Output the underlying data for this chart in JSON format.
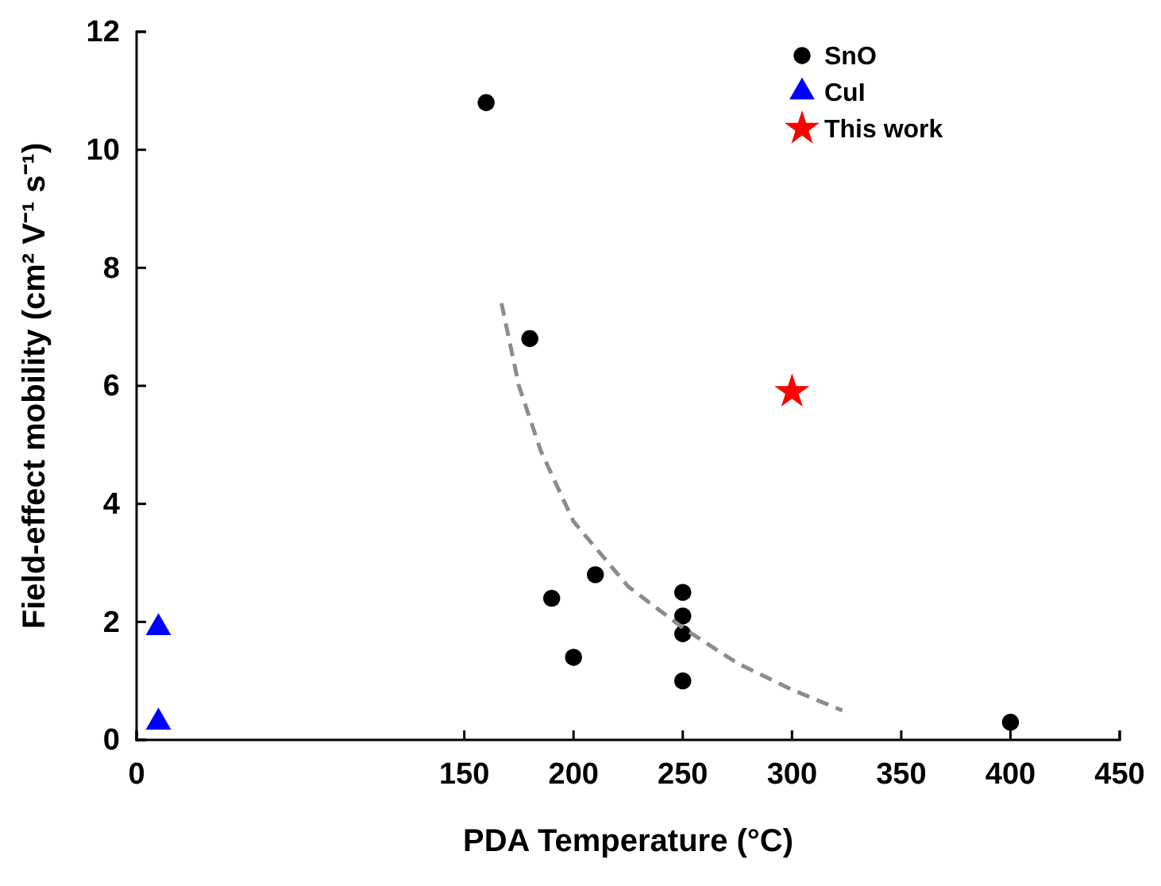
{
  "chart_data": {
    "type": "scatter",
    "xlabel": "PDA Temperature (°C)",
    "ylabel": "Field-effect mobility (cm² V⁻¹ s⁻¹)",
    "xlim": [
      0,
      450
    ],
    "xticks": [
      0,
      150,
      200,
      250,
      300,
      350,
      400,
      450
    ],
    "ylim": [
      0,
      12
    ],
    "yticks": [
      0,
      2,
      4,
      6,
      8,
      10,
      12
    ],
    "grid": false,
    "legend": "top right",
    "series": [
      {
        "name": "SnO",
        "color": "#000000",
        "marker": "circle",
        "x": [
          160,
          180,
          190,
          200,
          210,
          250,
          250,
          250,
          250,
          400
        ],
        "values": [
          10.8,
          6.8,
          2.4,
          1.4,
          2.8,
          2.5,
          2.1,
          1.8,
          1.0,
          0.3
        ]
      },
      {
        "name": "CuI",
        "color": "#0000ff",
        "marker": "triangle",
        "x": [
          10,
          10
        ],
        "values": [
          1.9,
          0.3
        ]
      },
      {
        "name": "This work",
        "color": "#ff0000",
        "marker": "star",
        "x": [
          300
        ],
        "values": [
          5.9
        ]
      },
      {
        "type": "line",
        "color": "#8c8c8c",
        "line_style": "dashed",
        "marker": "none",
        "x": [
          167,
          175,
          185,
          200,
          225,
          250,
          275,
          300,
          323
        ],
        "values": [
          7.4,
          6.0,
          4.9,
          3.7,
          2.6,
          1.9,
          1.3,
          0.85,
          0.5
        ]
      }
    ]
  }
}
